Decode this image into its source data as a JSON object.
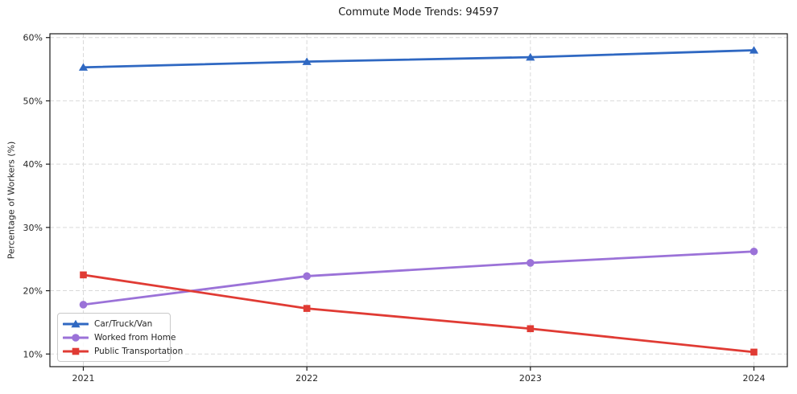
{
  "title": "Commute Mode Trends: 94597",
  "chart_data": {
    "type": "line",
    "title": "Commute Mode Trends: 94597",
    "x": [
      2021,
      2022,
      2023,
      2024
    ],
    "x_tick_labels": [
      "2021",
      "2022",
      "2023",
      "2024"
    ],
    "series": [
      {
        "name": "Car/Truck/Van",
        "values": [
          55.3,
          56.2,
          56.9,
          58.0
        ],
        "color": "#2f68c2",
        "marker": "triangle"
      },
      {
        "name": "Worked from Home",
        "values": [
          17.8,
          22.3,
          24.4,
          26.2
        ],
        "color": "#9b72d8",
        "marker": "circle"
      },
      {
        "name": "Public Transportation",
        "values": [
          22.5,
          17.2,
          14.0,
          10.3
        ],
        "color": "#e03b34",
        "marker": "square"
      }
    ],
    "xlabel": "",
    "ylabel": "Percentage of Workers (%)",
    "y_ticks": [
      10,
      20,
      30,
      40,
      50,
      60
    ],
    "y_tick_suffix": "%",
    "ylim": [
      8.0,
      60.6
    ],
    "grid": true,
    "grid_style": "dashed",
    "legend_position": "lower-left",
    "colors": {
      "grid": "#d9d9d9",
      "spine": "#1a1a1a",
      "text": "#262626",
      "background": "#ffffff"
    }
  }
}
